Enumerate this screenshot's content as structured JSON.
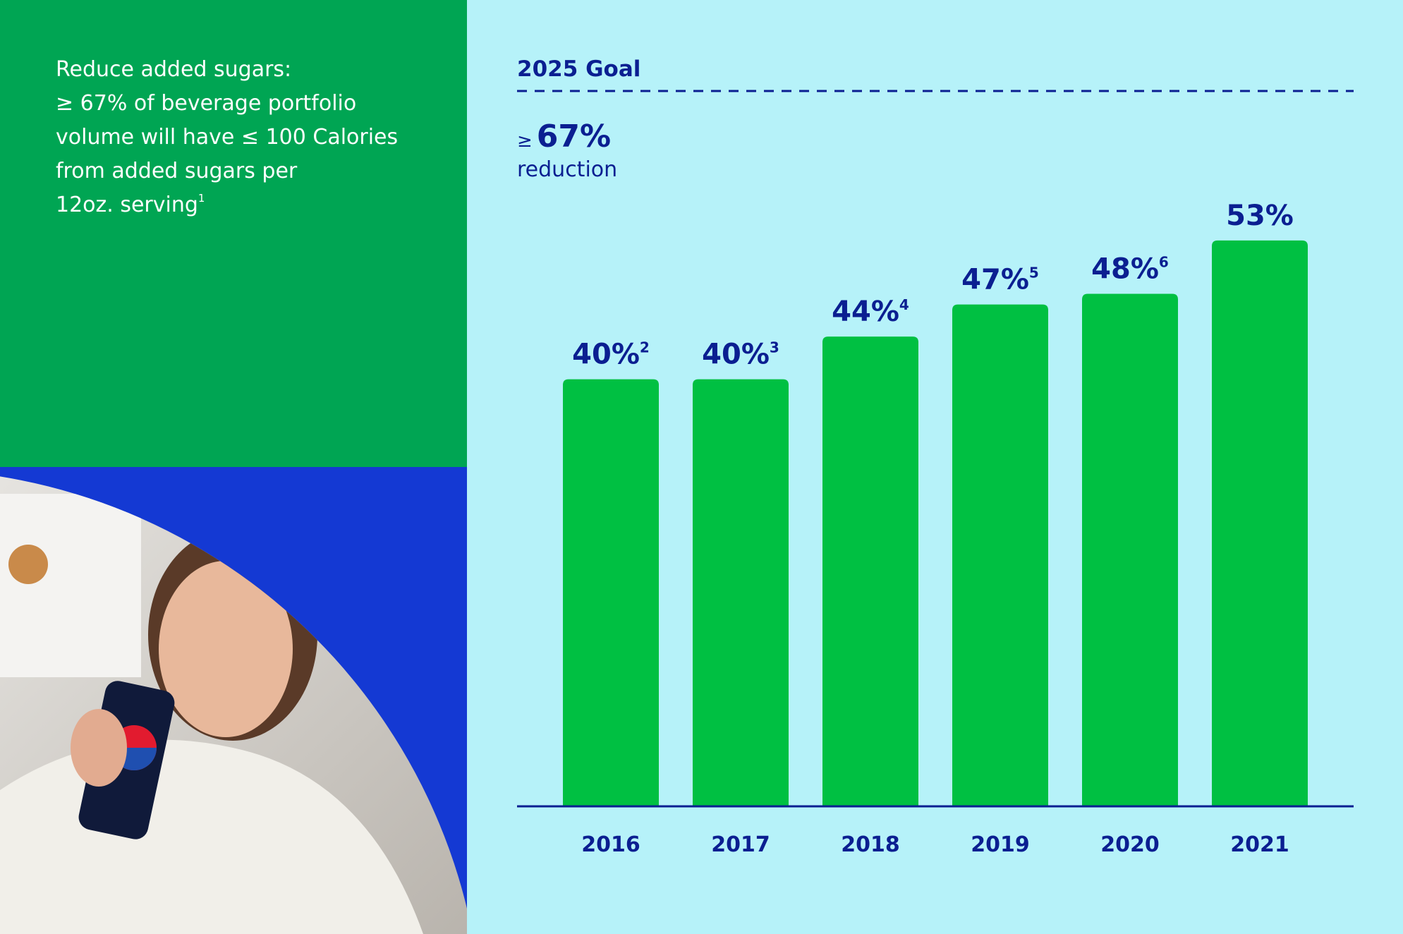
{
  "panel": {
    "lines": [
      "Reduce added sugars:",
      "≥ 67% of beverage portfolio",
      "volume will have ≤ 100 Calories",
      "from added sugars per",
      "12oz. serving"
    ],
    "footnote": "1"
  },
  "chart_data": {
    "type": "bar",
    "categories": [
      "2016",
      "2017",
      "2018",
      "2019",
      "2020",
      "2021"
    ],
    "values": [
      40,
      40,
      44,
      47,
      48,
      53
    ],
    "value_labels": [
      "40%",
      "40%",
      "44%",
      "47%",
      "48%",
      "53%"
    ],
    "value_label_notes": [
      "2",
      "3",
      "4",
      "5",
      "6",
      null
    ],
    "color": "#00c042",
    "ylim": [
      0,
      67
    ],
    "goal": {
      "label": "2025 Goal",
      "value": 67,
      "value_prefix": "≥",
      "value_label": "67%",
      "caption": "reduction"
    }
  }
}
